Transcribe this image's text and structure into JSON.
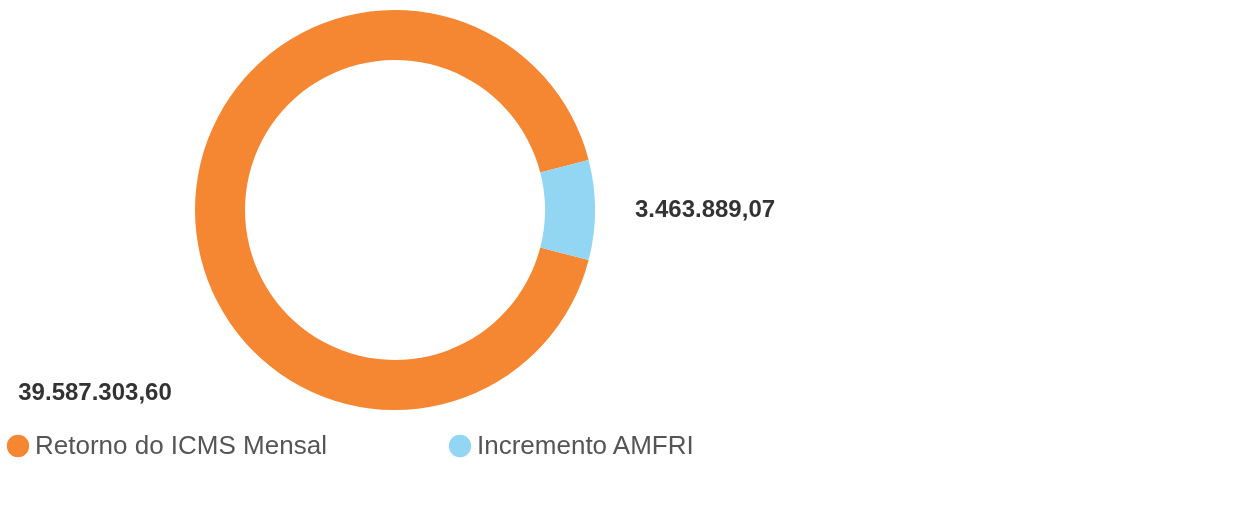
{
  "chart_data": {
    "type": "donut",
    "categories": [
      "Retorno do ICMS Mensal",
      "Incremento AMFRI"
    ],
    "values": [
      39587303.6,
      3463889.07
    ],
    "colors": [
      "#f58733",
      "#93d6f4"
    ],
    "value_labels": [
      "39.587.303,60",
      "3.463.889,07"
    ],
    "legend": "bottom"
  }
}
